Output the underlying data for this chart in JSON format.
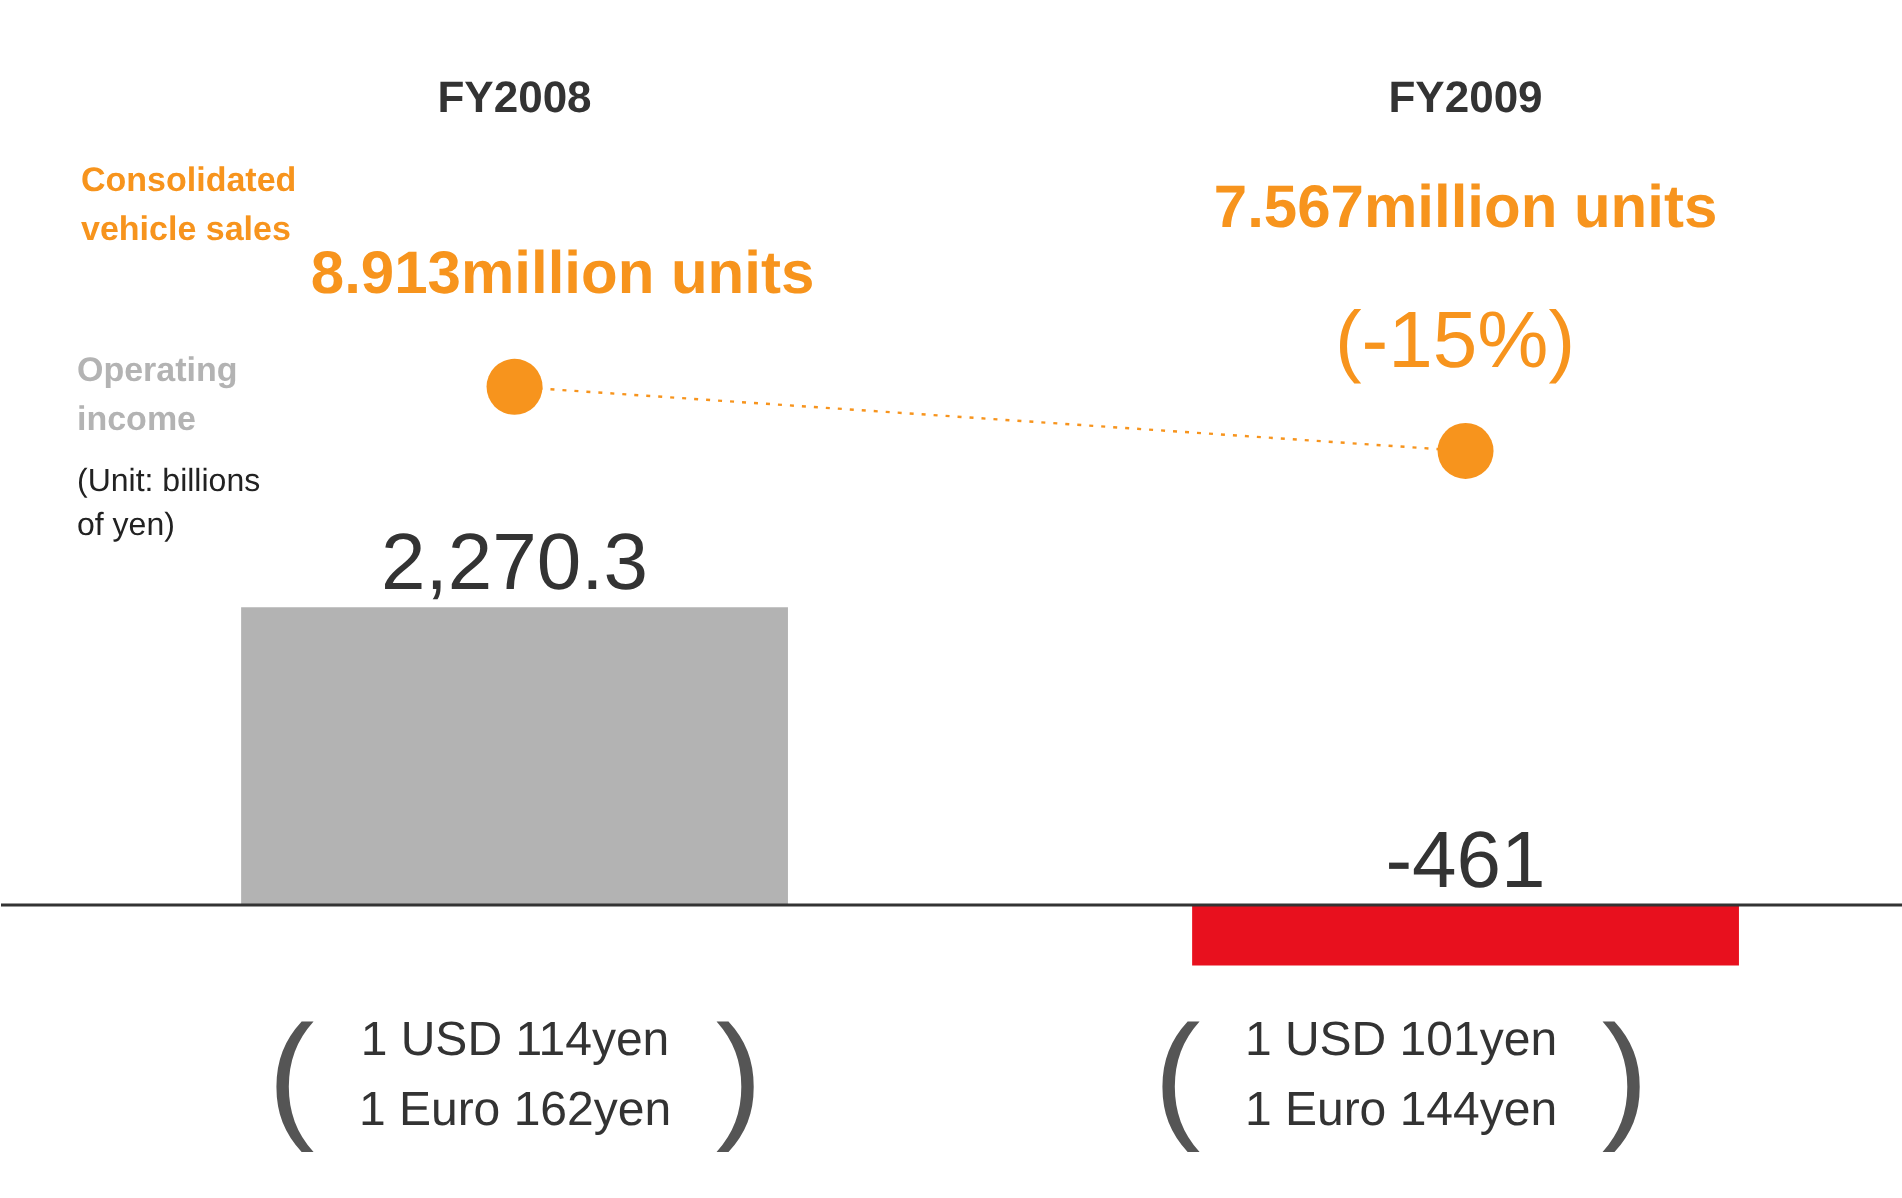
{
  "chart_data": {
    "type": "bar",
    "categories": [
      "FY2008",
      "FY2009"
    ],
    "series": [
      {
        "name": "Operating income",
        "colors": [
          "#b3b3b3",
          "#e8101e"
        ],
        "values": [
          2270.3,
          -461
        ],
        "value_labels": [
          "2,270.3",
          "-461"
        ]
      },
      {
        "name": "Consolidated vehicle sales",
        "type": "line",
        "axis": "y2",
        "color": "#f7941d",
        "values": [
          8.913,
          7.567
        ],
        "value_labels": [
          "8.913million units",
          "7.567million units"
        ],
        "marker": "circle",
        "line_style": "dotted"
      }
    ],
    "ylim": [
      -2240,
      6890
    ],
    "y2lim": [
      -8.15,
      17.02
    ],
    "tick_labels": false,
    "ref_lines": [
      {
        "axis": "y",
        "value": 0,
        "color": "#333333"
      }
    ],
    "annotations": [
      "(Unit: billions of yen)",
      "(-15%)",
      "(",
      "1 USD 114yen\n1 Euro 162yen",
      ")",
      "(",
      "1 USD 101yen\n1 Euro 144yen",
      ")"
    ]
  }
}
